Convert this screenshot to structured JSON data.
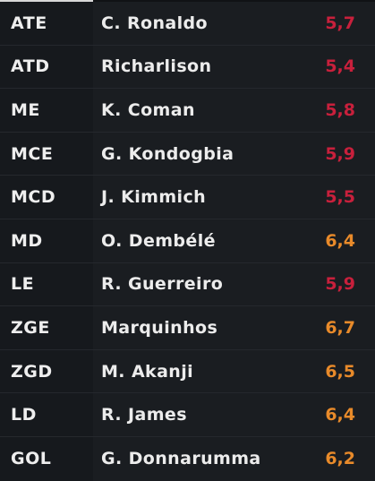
{
  "colors": {
    "low_rating": "#c8203c",
    "mid_rating": "#e88a2a"
  },
  "players": [
    {
      "position": "ATE",
      "name": "C. Ronaldo",
      "rating": "5,7",
      "tier": "low"
    },
    {
      "position": "ATD",
      "name": "Richarlison",
      "rating": "5,4",
      "tier": "low"
    },
    {
      "position": "ME",
      "name": "K. Coman",
      "rating": "5,8",
      "tier": "low"
    },
    {
      "position": "MCE",
      "name": "G. Kondogbia",
      "rating": "5,9",
      "tier": "low"
    },
    {
      "position": "MCD",
      "name": "J. Kimmich",
      "rating": "5,5",
      "tier": "low"
    },
    {
      "position": "MD",
      "name": "O. Dembélé",
      "rating": "6,4",
      "tier": "mid"
    },
    {
      "position": "LE",
      "name": "R. Guerreiro",
      "rating": "5,9",
      "tier": "low"
    },
    {
      "position": "ZGE",
      "name": "Marquinhos",
      "rating": "6,7",
      "tier": "mid"
    },
    {
      "position": "ZGD",
      "name": "M. Akanji",
      "rating": "6,5",
      "tier": "mid"
    },
    {
      "position": "LD",
      "name": "R. James",
      "rating": "6,4",
      "tier": "mid"
    },
    {
      "position": "GOL",
      "name": "G. Donnarumma",
      "rating": "6,2",
      "tier": "mid"
    }
  ]
}
